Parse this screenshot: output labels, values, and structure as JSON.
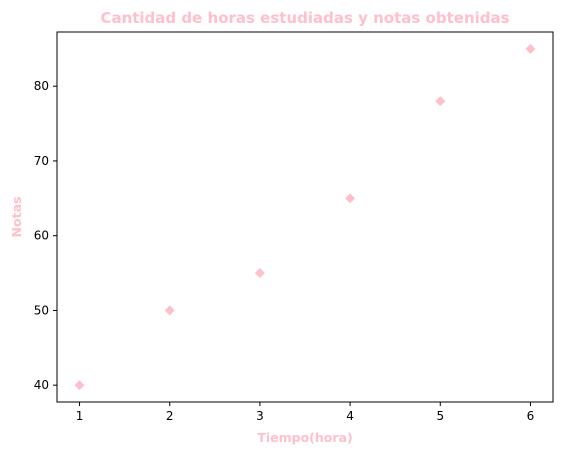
{
  "chart_data": {
    "type": "scatter",
    "title": "Cantidad de horas estudiadas y notas obtenidas",
    "xlabel": "Tiempo(hora)",
    "ylabel": "Notas",
    "x": [
      1,
      2,
      3,
      4,
      5,
      6
    ],
    "y": [
      40,
      50,
      55,
      65,
      78,
      85
    ],
    "xlim": [
      0.75,
      6.25
    ],
    "ylim": [
      37.75,
      87.25
    ],
    "xticks": [
      1,
      2,
      3,
      4,
      5,
      6
    ],
    "yticks": [
      40,
      50,
      60,
      70,
      80
    ],
    "marker": "diamond",
    "grid": false,
    "colors": {
      "accent": "#ffc0cb",
      "axis": "#000000"
    }
  }
}
